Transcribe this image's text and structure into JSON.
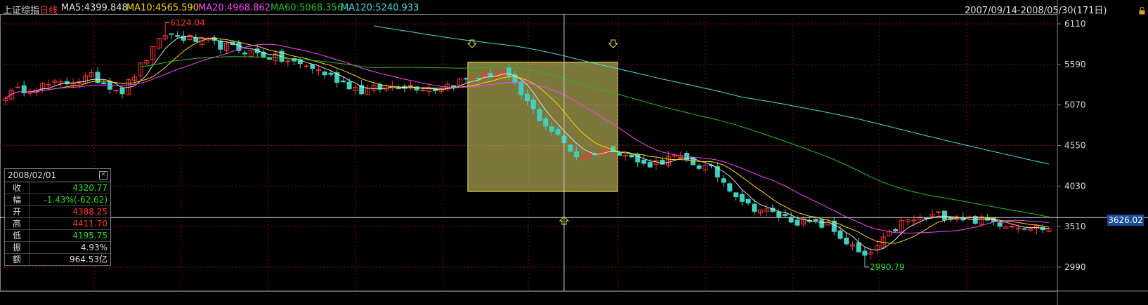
{
  "header": {
    "index_name": "上证综指",
    "period": "日线",
    "ma5": "MA5:4399.848",
    "ma10": "MA10:4565.590",
    "ma20": "MA20:4968.862",
    "ma60": "MA60:5068.356",
    "ma120": "MA120:5240.933",
    "date_range": "2007/09/14-2008/05/30(171日)",
    "colors": {
      "name": "#dddddd",
      "period": "#ff3030",
      "ma5": "#e0e0e0",
      "ma10": "#ffd700",
      "ma20": "#ff40ff",
      "ma60": "#20c020",
      "ma120": "#40e0e0"
    }
  },
  "info_panel": {
    "date": "2008/02/01",
    "rows": [
      {
        "label": "收",
        "value": "4320.77",
        "color": "#20e020"
      },
      {
        "label": "幅",
        "value": "-1.43%(-62.62)",
        "color": "#20e020"
      },
      {
        "label": "开",
        "value": "4388.25",
        "color": "#ff3030"
      },
      {
        "label": "高",
        "value": "4411.70",
        "color": "#ff3030"
      },
      {
        "label": "低",
        "value": "4195.75",
        "color": "#20e020"
      },
      {
        "label": "振",
        "value": "4.93%",
        "color": "#dddddd"
      },
      {
        "label": "额",
        "value": "964.53亿",
        "color": "#dddddd"
      }
    ]
  },
  "cursor_value": "3626.02",
  "chart_data": {
    "type": "candlestick",
    "x_start": "2007/09/14",
    "x_end": "2008/05/30",
    "bar_count": 171,
    "y_ticks": [
      2990,
      3510,
      4030,
      4550,
      5070,
      5590,
      6110
    ],
    "ylim": [
      2800,
      6300
    ],
    "annotations": [
      {
        "text": "6124.04",
        "bar": 26,
        "value": 6124.04,
        "color": "#ff3030",
        "kind": "high"
      },
      {
        "text": "2990.79",
        "bar": 140,
        "value": 2990.79,
        "color": "#20e020",
        "kind": "low"
      }
    ],
    "highlight_range": {
      "from_bar": 76,
      "to_bar": 99,
      "value_top": 5620,
      "value_bottom": 3960
    },
    "crosshair": {
      "bar": 91,
      "value": 3626.02
    },
    "vertices": [
      [
        0,
        5200
      ],
      [
        4,
        5300
      ],
      [
        9,
        5340
      ],
      [
        14,
        5430
      ],
      [
        19,
        5250
      ],
      [
        26,
        5980
      ],
      [
        31,
        5900
      ],
      [
        40,
        5750
      ],
      [
        50,
        5550
      ],
      [
        58,
        5250
      ],
      [
        64,
        5330
      ],
      [
        70,
        5280
      ],
      [
        75,
        5400
      ],
      [
        81,
        5500
      ],
      [
        87,
        4900
      ],
      [
        93,
        4420
      ],
      [
        99,
        4520
      ],
      [
        104,
        4300
      ],
      [
        109,
        4400
      ],
      [
        115,
        4240
      ],
      [
        121,
        3780
      ],
      [
        129,
        3580
      ],
      [
        134,
        3520
      ],
      [
        140,
        3100
      ],
      [
        146,
        3560
      ],
      [
        152,
        3660
      ],
      [
        160,
        3580
      ],
      [
        171,
        3470
      ]
    ],
    "legend": [
      "MA5",
      "MA10",
      "MA20",
      "MA60",
      "MA120"
    ]
  }
}
